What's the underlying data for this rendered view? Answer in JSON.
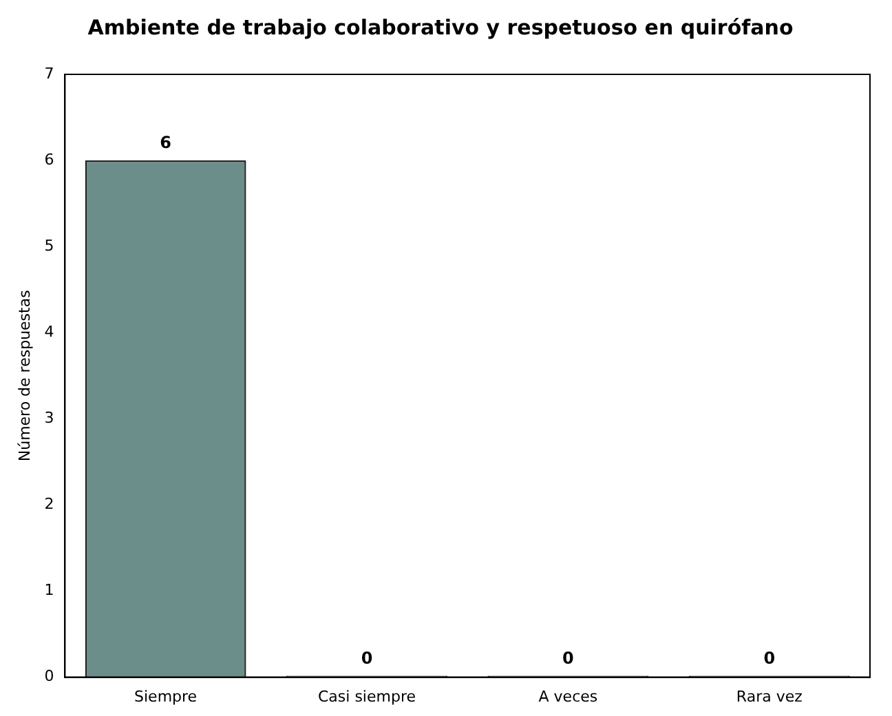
{
  "chart_data": {
    "type": "bar",
    "title": "Ambiente de trabajo colaborativo y respetuoso en quirófano",
    "ylabel": "Número de respuestas",
    "categories": [
      "Siempre",
      "Casi siempre",
      "A veces",
      "Rara vez"
    ],
    "values": [
      6,
      0,
      0,
      0
    ],
    "color": "#6b8e8a",
    "ylim": [
      0,
      7
    ],
    "yticks": [
      0,
      1,
      2,
      3,
      4,
      5,
      6,
      7
    ],
    "grid": false,
    "legend": false,
    "data_labels": true
  }
}
